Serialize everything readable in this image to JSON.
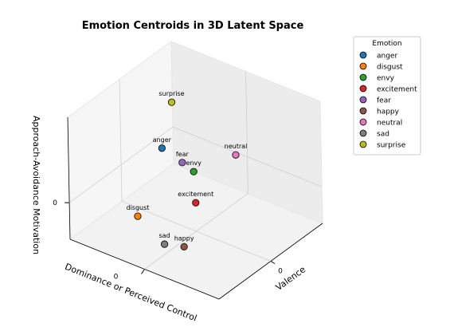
{
  "chart_data": {
    "type": "scatter3d",
    "title": "Emotion Centroids in 3D Latent Space",
    "xlabel": "Dominance or Perceived Control",
    "ylabel": "Valence",
    "zlabel": "Approach-Avoidance Motivation",
    "xlim": [
      -1,
      1
    ],
    "ylim": [
      -1,
      1
    ],
    "zlim": [
      -0.6,
      1.4
    ],
    "xticks": [
      0
    ],
    "yticks": [
      0
    ],
    "zticks": [
      0
    ],
    "grid": true,
    "legend_title": "Emotion",
    "legend": "upper right",
    "series": [
      {
        "name": "anger",
        "color": "#1f77b4",
        "x": -0.55,
        "y": 0.15,
        "z": 0.4
      },
      {
        "name": "disgust",
        "color": "#ff7f0e",
        "x": -0.54,
        "y": -0.35,
        "z": -0.4
      },
      {
        "name": "envy",
        "color": "#2ca02c",
        "x": -0.29,
        "y": 0.38,
        "z": 0.0
      },
      {
        "name": "excitement",
        "color": "#d62728",
        "x": -0.05,
        "y": 0.07,
        "z": -0.2
      },
      {
        "name": "fear",
        "color": "#9467bd",
        "x": -0.35,
        "y": 0.25,
        "z": 0.2
      },
      {
        "name": "happy",
        "color": "#8c564b",
        "x": 0.15,
        "y": -0.45,
        "z": -0.5
      },
      {
        "name": "neutral",
        "color": "#e377c2",
        "x": 0.17,
        "y": 0.54,
        "z": 0.4
      },
      {
        "name": "sad",
        "color": "#7f7f7f",
        "x": -0.05,
        "y": -0.54,
        "z": -0.5
      },
      {
        "name": "surprise",
        "color": "#bcbd22",
        "x": -0.57,
        "y": 0.38,
        "z": 1.0
      }
    ]
  }
}
